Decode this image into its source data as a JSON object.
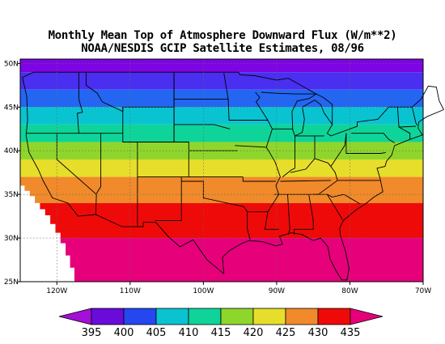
{
  "title_line1": "Monthly Mean Top of Atmosphere Downward Flux (W/m**2)",
  "title_line2": "NOAA/NESDIS GCIP Satellite Estimates, 08/96",
  "map": {
    "lon_range": [
      -125,
      -70
    ],
    "lat_range": [
      25,
      50.5
    ],
    "lon_ticks": [
      "120W",
      "110W",
      "100W",
      "90W",
      "80W",
      "70W"
    ],
    "lon_tick_values": [
      -120,
      -110,
      -100,
      -90,
      -80,
      -70
    ],
    "lat_ticks": [
      "25N",
      "30N",
      "35N",
      "40N",
      "45N",
      "50N"
    ],
    "lat_tick_values": [
      25,
      30,
      35,
      40,
      45,
      50
    ],
    "grid": "dotted",
    "no_data_color": "#ffffff"
  },
  "flux_bands": [
    {
      "lat_min": 49.0,
      "lat_max": 50.5,
      "color": "#7d05e3"
    },
    {
      "lat_min": 47.0,
      "lat_max": 49.0,
      "color": "#4a2ff0"
    },
    {
      "lat_min": 45.0,
      "lat_max": 47.0,
      "color": "#2466f2"
    },
    {
      "lat_min": 43.0,
      "lat_max": 45.0,
      "color": "#0ac3d1"
    },
    {
      "lat_min": 41.0,
      "lat_max": 43.0,
      "color": "#0ed49a"
    },
    {
      "lat_min": 39.0,
      "lat_max": 41.0,
      "color": "#8fd62c"
    },
    {
      "lat_min": 37.0,
      "lat_max": 39.0,
      "color": "#e6de2a"
    },
    {
      "lat_min": 34.0,
      "lat_max": 37.0,
      "color": "#f08a2a"
    },
    {
      "lat_min": 30.0,
      "lat_max": 34.0,
      "color": "#ef0a0a"
    },
    {
      "lat_min": 25.0,
      "lat_max": 30.0,
      "color": "#e6007a"
    }
  ],
  "colorbar": {
    "labels": [
      "395",
      "400",
      "405",
      "410",
      "415",
      "420",
      "425",
      "430",
      "435"
    ],
    "colors": [
      "#a30fd6",
      "#6a0bd9",
      "#2447f0",
      "#0ac3d1",
      "#0ed49a",
      "#8fd62c",
      "#e6de2a",
      "#f08a2a",
      "#ef0a0a",
      "#e6007a"
    ]
  }
}
